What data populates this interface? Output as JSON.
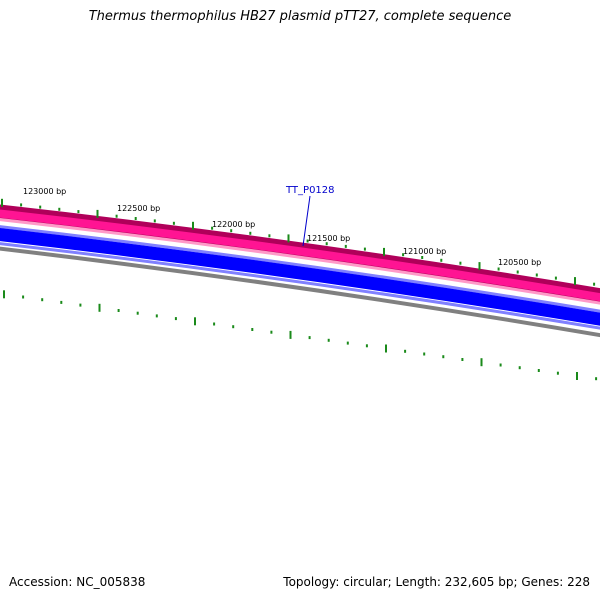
{
  "title": "Thermus thermophilus HB27 plasmid pTT27, complete sequence",
  "footer": {
    "accession": "Accession: NC_005838",
    "summary": "Topology: circular; Length: 232,605 bp; Genes: 228"
  },
  "scale_labels": [
    "123000 bp",
    "122500 bp",
    "122000 bp",
    "121500 bp",
    "121000 bp",
    "120500 bp"
  ],
  "gene_label": "TT_P0128",
  "colors": {
    "forward_strand": "#ff1493",
    "forward_strand_edge": "#b0005a",
    "forward_strand_light": "#ff9ac8",
    "reverse_strand": "#0000ff",
    "reverse_strand_light": "#8080ff",
    "backbone": "#808080",
    "tick": "#1a8a1a",
    "gene_label": "#0000cc"
  }
}
